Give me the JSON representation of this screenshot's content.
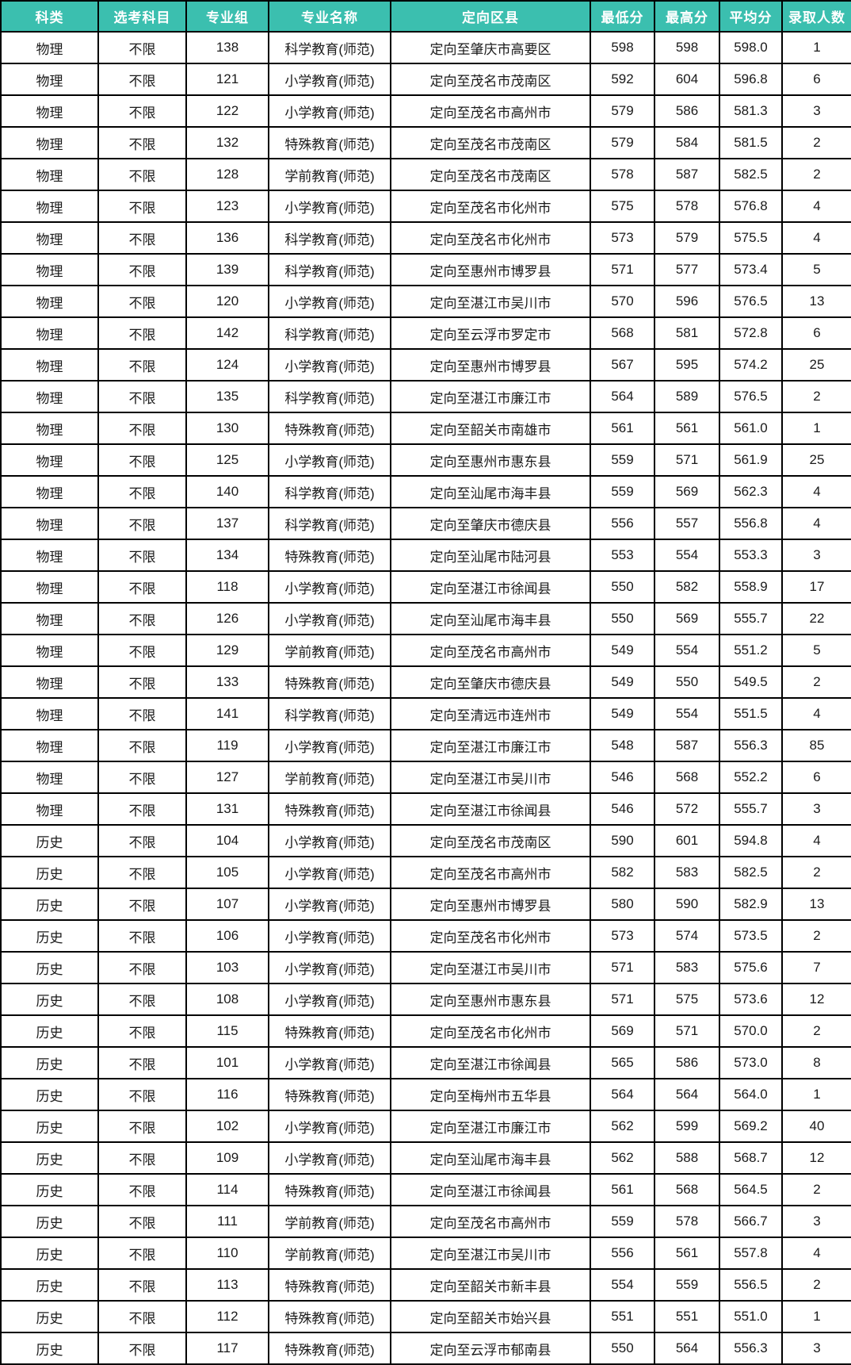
{
  "colors": {
    "header_bg": "#3bbfaf",
    "header_text": "#ffffff",
    "border": "#000000",
    "body_text": "#1a1a1a"
  },
  "chart_data": {
    "type": "table",
    "columns": [
      "科类",
      "选考科目",
      "专业组",
      "专业名称",
      "定向区县",
      "最低分",
      "最高分",
      "平均分",
      "录取人数"
    ],
    "rows": [
      [
        "物理",
        "不限",
        "138",
        "科学教育(师范)",
        "定向至肇庆市高要区",
        "598",
        "598",
        "598.0",
        "1"
      ],
      [
        "物理",
        "不限",
        "121",
        "小学教育(师范)",
        "定向至茂名市茂南区",
        "592",
        "604",
        "596.8",
        "6"
      ],
      [
        "物理",
        "不限",
        "122",
        "小学教育(师范)",
        "定向至茂名市高州市",
        "579",
        "586",
        "581.3",
        "3"
      ],
      [
        "物理",
        "不限",
        "132",
        "特殊教育(师范)",
        "定向至茂名市茂南区",
        "579",
        "584",
        "581.5",
        "2"
      ],
      [
        "物理",
        "不限",
        "128",
        "学前教育(师范)",
        "定向至茂名市茂南区",
        "578",
        "587",
        "582.5",
        "2"
      ],
      [
        "物理",
        "不限",
        "123",
        "小学教育(师范)",
        "定向至茂名市化州市",
        "575",
        "578",
        "576.8",
        "4"
      ],
      [
        "物理",
        "不限",
        "136",
        "科学教育(师范)",
        "定向至茂名市化州市",
        "573",
        "579",
        "575.5",
        "4"
      ],
      [
        "物理",
        "不限",
        "139",
        "科学教育(师范)",
        "定向至惠州市博罗县",
        "571",
        "577",
        "573.4",
        "5"
      ],
      [
        "物理",
        "不限",
        "120",
        "小学教育(师范)",
        "定向至湛江市吴川市",
        "570",
        "596",
        "576.5",
        "13"
      ],
      [
        "物理",
        "不限",
        "142",
        "科学教育(师范)",
        "定向至云浮市罗定市",
        "568",
        "581",
        "572.8",
        "6"
      ],
      [
        "物理",
        "不限",
        "124",
        "小学教育(师范)",
        "定向至惠州市博罗县",
        "567",
        "595",
        "574.2",
        "25"
      ],
      [
        "物理",
        "不限",
        "135",
        "科学教育(师范)",
        "定向至湛江市廉江市",
        "564",
        "589",
        "576.5",
        "2"
      ],
      [
        "物理",
        "不限",
        "130",
        "特殊教育(师范)",
        "定向至韶关市南雄市",
        "561",
        "561",
        "561.0",
        "1"
      ],
      [
        "物理",
        "不限",
        "125",
        "小学教育(师范)",
        "定向至惠州市惠东县",
        "559",
        "571",
        "561.9",
        "25"
      ],
      [
        "物理",
        "不限",
        "140",
        "科学教育(师范)",
        "定向至汕尾市海丰县",
        "559",
        "569",
        "562.3",
        "4"
      ],
      [
        "物理",
        "不限",
        "137",
        "科学教育(师范)",
        "定向至肇庆市德庆县",
        "556",
        "557",
        "556.8",
        "4"
      ],
      [
        "物理",
        "不限",
        "134",
        "特殊教育(师范)",
        "定向至汕尾市陆河县",
        "553",
        "554",
        "553.3",
        "3"
      ],
      [
        "物理",
        "不限",
        "118",
        "小学教育(师范)",
        "定向至湛江市徐闻县",
        "550",
        "582",
        "558.9",
        "17"
      ],
      [
        "物理",
        "不限",
        "126",
        "小学教育(师范)",
        "定向至汕尾市海丰县",
        "550",
        "569",
        "555.7",
        "22"
      ],
      [
        "物理",
        "不限",
        "129",
        "学前教育(师范)",
        "定向至茂名市高州市",
        "549",
        "554",
        "551.2",
        "5"
      ],
      [
        "物理",
        "不限",
        "133",
        "特殊教育(师范)",
        "定向至肇庆市德庆县",
        "549",
        "550",
        "549.5",
        "2"
      ],
      [
        "物理",
        "不限",
        "141",
        "科学教育(师范)",
        "定向至清远市连州市",
        "549",
        "554",
        "551.5",
        "4"
      ],
      [
        "物理",
        "不限",
        "119",
        "小学教育(师范)",
        "定向至湛江市廉江市",
        "548",
        "587",
        "556.3",
        "85"
      ],
      [
        "物理",
        "不限",
        "127",
        "学前教育(师范)",
        "定向至湛江市吴川市",
        "546",
        "568",
        "552.2",
        "6"
      ],
      [
        "物理",
        "不限",
        "131",
        "特殊教育(师范)",
        "定向至湛江市徐闻县",
        "546",
        "572",
        "555.7",
        "3"
      ],
      [
        "历史",
        "不限",
        "104",
        "小学教育(师范)",
        "定向至茂名市茂南区",
        "590",
        "601",
        "594.8",
        "4"
      ],
      [
        "历史",
        "不限",
        "105",
        "小学教育(师范)",
        "定向至茂名市高州市",
        "582",
        "583",
        "582.5",
        "2"
      ],
      [
        "历史",
        "不限",
        "107",
        "小学教育(师范)",
        "定向至惠州市博罗县",
        "580",
        "590",
        "582.9",
        "13"
      ],
      [
        "历史",
        "不限",
        "106",
        "小学教育(师范)",
        "定向至茂名市化州市",
        "573",
        "574",
        "573.5",
        "2"
      ],
      [
        "历史",
        "不限",
        "103",
        "小学教育(师范)",
        "定向至湛江市吴川市",
        "571",
        "583",
        "575.6",
        "7"
      ],
      [
        "历史",
        "不限",
        "108",
        "小学教育(师范)",
        "定向至惠州市惠东县",
        "571",
        "575",
        "573.6",
        "12"
      ],
      [
        "历史",
        "不限",
        "115",
        "特殊教育(师范)",
        "定向至茂名市化州市",
        "569",
        "571",
        "570.0",
        "2"
      ],
      [
        "历史",
        "不限",
        "101",
        "小学教育(师范)",
        "定向至湛江市徐闻县",
        "565",
        "586",
        "573.0",
        "8"
      ],
      [
        "历史",
        "不限",
        "116",
        "特殊教育(师范)",
        "定向至梅州市五华县",
        "564",
        "564",
        "564.0",
        "1"
      ],
      [
        "历史",
        "不限",
        "102",
        "小学教育(师范)",
        "定向至湛江市廉江市",
        "562",
        "599",
        "569.2",
        "40"
      ],
      [
        "历史",
        "不限",
        "109",
        "小学教育(师范)",
        "定向至汕尾市海丰县",
        "562",
        "588",
        "568.7",
        "12"
      ],
      [
        "历史",
        "不限",
        "114",
        "特殊教育(师范)",
        "定向至湛江市徐闻县",
        "561",
        "568",
        "564.5",
        "2"
      ],
      [
        "历史",
        "不限",
        "111",
        "学前教育(师范)",
        "定向至茂名市高州市",
        "559",
        "578",
        "566.7",
        "3"
      ],
      [
        "历史",
        "不限",
        "110",
        "学前教育(师范)",
        "定向至湛江市吴川市",
        "556",
        "561",
        "557.8",
        "4"
      ],
      [
        "历史",
        "不限",
        "113",
        "特殊教育(师范)",
        "定向至韶关市新丰县",
        "554",
        "559",
        "556.5",
        "2"
      ],
      [
        "历史",
        "不限",
        "112",
        "特殊教育(师范)",
        "定向至韶关市始兴县",
        "551",
        "551",
        "551.0",
        "1"
      ],
      [
        "历史",
        "不限",
        "117",
        "特殊教育(师范)",
        "定向至云浮市郁南县",
        "550",
        "564",
        "556.3",
        "3"
      ]
    ]
  }
}
